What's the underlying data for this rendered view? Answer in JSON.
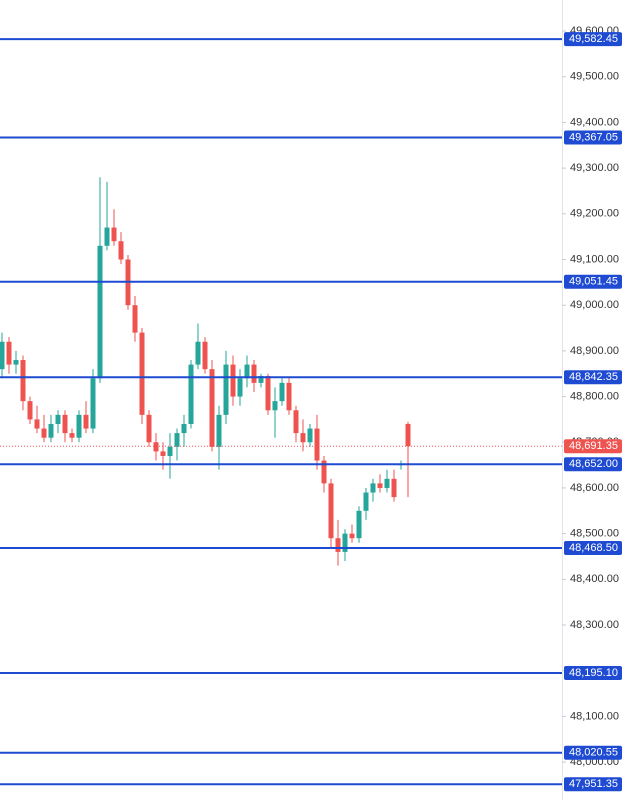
{
  "chart_data": {
    "type": "candlestick",
    "categories": [
      null,
      null,
      null,
      null,
      null,
      null,
      null,
      null,
      null,
      null,
      null,
      null,
      null,
      null,
      null,
      null,
      null,
      null,
      null,
      null,
      null,
      null,
      null,
      null,
      null,
      null,
      null,
      null,
      null,
      null,
      null,
      null,
      null,
      null,
      null,
      null,
      null,
      null,
      null,
      null,
      null,
      null,
      null,
      null,
      null,
      null,
      null,
      null,
      null,
      null,
      null,
      null,
      null,
      null,
      null,
      null,
      null,
      null,
      null
    ],
    "open": [
      48860,
      48920,
      48870,
      48880,
      48790,
      48750,
      48730,
      48710,
      48740,
      48760,
      48720,
      48710,
      48760,
      48730,
      48840,
      49130,
      49170,
      49140,
      49100,
      49000,
      48940,
      48760,
      48700,
      48680,
      48670,
      48690,
      48720,
      48740,
      48870,
      48920,
      48860,
      48690,
      48760,
      48870,
      48800,
      48840,
      48870,
      48830,
      48845,
      48770,
      48790,
      48830,
      48770,
      48720,
      48700,
      48730,
      48660,
      48610,
      48490,
      48460,
      48500,
      48490,
      48550,
      48590,
      48610,
      48600,
      48620,
      48650,
      48740
    ],
    "high": [
      48940,
      48930,
      48900,
      48890,
      48800,
      48780,
      48760,
      48760,
      48770,
      48770,
      48730,
      48770,
      48790,
      48860,
      49280,
      49270,
      49210,
      49160,
      49110,
      49020,
      48950,
      48770,
      48720,
      48700,
      48720,
      48730,
      48760,
      48880,
      48960,
      48930,
      48880,
      48780,
      48900,
      48890,
      48860,
      48890,
      48880,
      48850,
      48850,
      48820,
      48840,
      48840,
      48780,
      48750,
      48740,
      48760,
      48670,
      48620,
      48530,
      48510,
      48520,
      48560,
      48600,
      48620,
      48630,
      48640,
      48640,
      48660,
      48745
    ],
    "low": [
      48840,
      48850,
      48850,
      48770,
      48740,
      48720,
      48700,
      48700,
      48720,
      48700,
      48700,
      48700,
      48720,
      48720,
      48830,
      49120,
      49130,
      49090,
      48990,
      48920,
      48740,
      48690,
      48660,
      48640,
      48620,
      48660,
      48690,
      48730,
      48860,
      48850,
      48680,
      48640,
      48740,
      48780,
      48780,
      48820,
      48810,
      48820,
      48760,
      48710,
      48780,
      48760,
      48700,
      48680,
      48690,
      48640,
      48590,
      48470,
      48430,
      48440,
      48480,
      48480,
      48530,
      48570,
      48590,
      48590,
      48570,
      48640,
      48580
    ],
    "close": [
      48920,
      48870,
      48880,
      48790,
      48750,
      48730,
      48710,
      48740,
      48760,
      48720,
      48710,
      48760,
      48730,
      48840,
      49130,
      49170,
      49140,
      49100,
      49000,
      48940,
      48760,
      48700,
      48680,
      48670,
      48690,
      48720,
      48740,
      48870,
      48920,
      48860,
      48690,
      48760,
      48870,
      48800,
      48840,
      48870,
      48830,
      48845,
      48770,
      48790,
      48830,
      48770,
      48720,
      48700,
      48730,
      48660,
      48610,
      48490,
      48460,
      48500,
      48490,
      48550,
      48590,
      48610,
      48600,
      48620,
      48580,
      48652,
      48691.35
    ],
    "up_color": "#26a69a",
    "down_color": "#ef5350",
    "level_color": "#1e4bd2",
    "ylim": [
      47917,
      49668
    ],
    "yticks": [
      {
        "value": 48000,
        "label": "48,000.00"
      },
      {
        "value": 48100,
        "label": "48,100.00"
      },
      {
        "value": 48200,
        "label": "48,200.00"
      },
      {
        "value": 48300,
        "label": "48,300.00"
      },
      {
        "value": 48400,
        "label": "48,400.00"
      },
      {
        "value": 48500,
        "label": "48,500.00"
      },
      {
        "value": 48600,
        "label": "48,600.00"
      },
      {
        "value": 48700,
        "label": "48,700.00"
      },
      {
        "value": 48800,
        "label": "48,800.00"
      },
      {
        "value": 48900,
        "label": "48,900.00"
      },
      {
        "value": 49000,
        "label": "49,000.00"
      },
      {
        "value": 49100,
        "label": "49,100.00"
      },
      {
        "value": 49200,
        "label": "49,200.00"
      },
      {
        "value": 49300,
        "label": "49,300.00"
      },
      {
        "value": 49400,
        "label": "49,400.00"
      },
      {
        "value": 49500,
        "label": "49,500.00"
      },
      {
        "value": 49600,
        "label": "49,600.00"
      }
    ],
    "levels": [
      {
        "value": 49582.45,
        "label": "49,582.45"
      },
      {
        "value": 49367.05,
        "label": "49,367.05"
      },
      {
        "value": 49051.45,
        "label": "49,051.45"
      },
      {
        "value": 48842.35,
        "label": "48,842.35"
      },
      {
        "value": 48652.0,
        "label": "48,652.00"
      },
      {
        "value": 48468.5,
        "label": "48,468.50"
      },
      {
        "value": 48195.1,
        "label": "48,195.10"
      },
      {
        "value": 48020.55,
        "label": "48,020.55"
      },
      {
        "value": 47951.35,
        "label": "47,951.35"
      }
    ],
    "last_price": {
      "value": 48691.35,
      "label": "48,691.35"
    }
  }
}
